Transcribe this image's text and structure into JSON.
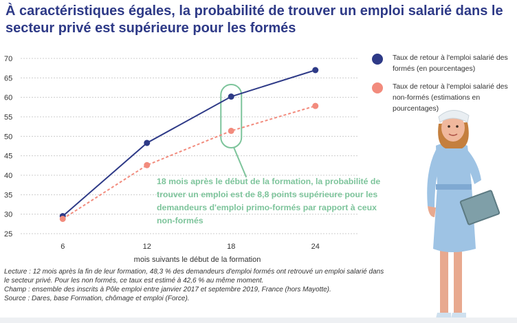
{
  "title": "À caractéristiques égales, la probabilité de trouver un emploi salarié dans le secteur privé est supérieure pour les formés",
  "chart_data": {
    "type": "line",
    "x": [
      6,
      12,
      18,
      24
    ],
    "xlabel": "mois suivants le début de la formation",
    "ylabel": "",
    "ylim": [
      25,
      70
    ],
    "yticks": [
      25,
      30,
      35,
      40,
      45,
      50,
      55,
      60,
      65,
      70
    ],
    "xticks": [
      6,
      12,
      18,
      24
    ],
    "grid": true,
    "legend_position": "top-right",
    "series": [
      {
        "name": "Taux de retour à l'emploi salarié des formés (en pourcentages)",
        "values": [
          29.5,
          48.3,
          60.2,
          67.0
        ],
        "color": "#2e3a87",
        "style": "solid"
      },
      {
        "name": "Taux de retour à l'emploi salarié des non-formés (estimations en pourcentages)",
        "values": [
          28.8,
          42.6,
          51.4,
          57.8
        ],
        "color": "#f28b7d",
        "style": "dashed"
      }
    ],
    "annotation": "18 mois après le début de la formation, la probabilité de trouver un emploi est de 8,8 points supérieure pour les demandeurs d'emploi primo-formés par rapport à ceux non-formés",
    "highlight_x": 18
  },
  "colors": {
    "title": "#2e3a87",
    "accent_green": "#7dc49b",
    "grid": "#cccccc"
  },
  "notes": [
    "Lecture : 12 mois après la fin de leur formation, 48,3 % des demandeurs d'emploi formés ont retrouvé un emploi salarié dans le secteur privé. Pour les non formés, ce taux est estimé à 42,6 % au même moment.",
    "Champ : ensemble des inscrits à Pôle emploi entre janvier 2017 et septembre 2019, France (hors Mayotte).",
    "Source : Dares, base Formation, chômage et emploi (Force)."
  ],
  "illustration": "nurse-illustration"
}
